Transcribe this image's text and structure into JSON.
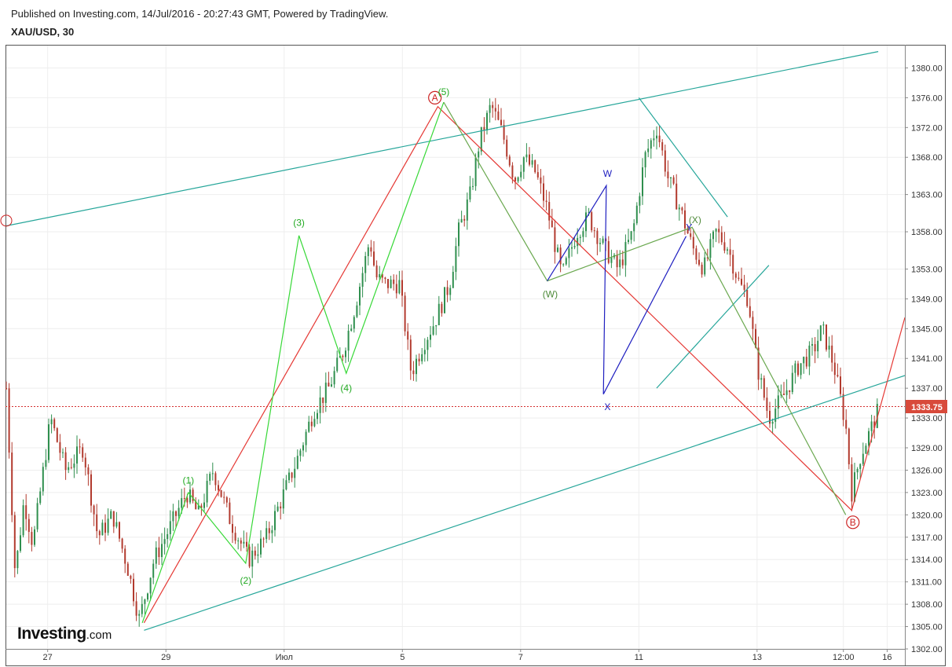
{
  "header": {
    "published": "Published on Investing.com, 14/Jul/2016 - 20:27:43 GMT, Powered by TradingView.",
    "symbol": "XAU/USD, 30"
  },
  "logo": {
    "brand": "Investing",
    "suffix": ".com"
  },
  "chart_data": {
    "type": "candlestick",
    "symbol": "XAU/USD",
    "interval": "30",
    "ylim": [
      1302,
      1383
    ],
    "y_ticks": [
      "1380.00",
      "1376.00",
      "1372.00",
      "1368.00",
      "1363.00",
      "1358.00",
      "1353.00",
      "1349.00",
      "1345.00",
      "1341.00",
      "1337.00",
      "1333.00",
      "1329.00",
      "1326.00",
      "1323.00",
      "1320.00",
      "1317.00",
      "1314.00",
      "1311.00",
      "1308.00",
      "1305.00",
      "1302.00"
    ],
    "y_tick_values": [
      1380,
      1376,
      1372,
      1368,
      1363,
      1358,
      1353,
      1349,
      1345,
      1341,
      1337,
      1333,
      1329,
      1326,
      1323,
      1320,
      1317,
      1314,
      1311,
      1308,
      1305,
      1302
    ],
    "x_ticks": [
      "27",
      "29",
      "Июл",
      "5",
      "7",
      "11",
      "13",
      "12:00",
      "16"
    ],
    "x_tick_values": [
      0,
      2,
      4,
      6,
      8,
      10,
      12,
      13.46,
      14.2
    ],
    "x_range": [
      -0.7,
      14.5
    ],
    "last_price": 1333.75,
    "last_price_label": "1333.75",
    "grid": true,
    "price_path": [
      [
        -0.7,
        1337
      ],
      [
        -0.55,
        1312
      ],
      [
        -0.4,
        1322
      ],
      [
        -0.25,
        1316
      ],
      [
        0.05,
        1333
      ],
      [
        0.3,
        1326
      ],
      [
        0.6,
        1329
      ],
      [
        0.85,
        1317
      ],
      [
        1.1,
        1320
      ],
      [
        1.35,
        1313
      ],
      [
        1.55,
        1306
      ],
      [
        1.8,
        1314
      ],
      [
        2.05,
        1318
      ],
      [
        2.35,
        1323
      ],
      [
        2.55,
        1320
      ],
      [
        2.8,
        1326
      ],
      [
        3.1,
        1319
      ],
      [
        3.4,
        1314
      ],
      [
        3.7,
        1317
      ],
      [
        3.95,
        1322
      ],
      [
        4.2,
        1327
      ],
      [
        4.5,
        1334
      ],
      [
        4.75,
        1337
      ],
      [
        5.0,
        1342
      ],
      [
        5.2,
        1348
      ],
      [
        5.45,
        1357
      ],
      [
        5.55,
        1352
      ],
      [
        5.7,
        1351
      ],
      [
        5.95,
        1351
      ],
      [
        6.15,
        1339
      ],
      [
        6.35,
        1343
      ],
      [
        6.55,
        1346
      ],
      [
        6.8,
        1351
      ],
      [
        6.95,
        1358
      ],
      [
        7.15,
        1363
      ],
      [
        7.3,
        1370
      ],
      [
        7.5,
        1375
      ],
      [
        7.7,
        1371
      ],
      [
        7.9,
        1365
      ],
      [
        8.05,
        1368
      ],
      [
        8.25,
        1366
      ],
      [
        8.45,
        1361
      ],
      [
        8.7,
        1352
      ],
      [
        8.95,
        1358
      ],
      [
        9.15,
        1360
      ],
      [
        9.4,
        1356
      ],
      [
        9.65,
        1353
      ],
      [
        9.9,
        1358
      ],
      [
        10.1,
        1368
      ],
      [
        10.3,
        1372
      ],
      [
        10.5,
        1365
      ],
      [
        10.7,
        1361
      ],
      [
        10.9,
        1356
      ],
      [
        11.1,
        1353
      ],
      [
        11.3,
        1358
      ],
      [
        11.5,
        1356
      ],
      [
        11.7,
        1351
      ],
      [
        11.85,
        1349
      ],
      [
        12.0,
        1340
      ],
      [
        12.2,
        1333
      ],
      [
        12.45,
        1336
      ],
      [
        12.7,
        1340
      ],
      [
        12.95,
        1342
      ],
      [
        13.1,
        1345
      ],
      [
        13.3,
        1340
      ],
      [
        13.5,
        1332
      ],
      [
        13.6,
        1323
      ],
      [
        13.75,
        1328
      ],
      [
        13.9,
        1331
      ],
      [
        14.05,
        1334
      ]
    ],
    "lines": [
      {
        "name": "channel-upper",
        "color": "#26a69a",
        "points": [
          [
            -0.7,
            1358.8
          ],
          [
            14.05,
            1382.2
          ]
        ]
      },
      {
        "name": "channel-lower",
        "color": "#26a69a",
        "points": [
          [
            1.63,
            1304.5
          ],
          [
            14.5,
            1338.7
          ]
        ]
      },
      {
        "name": "channel-extra",
        "color": "#26a69a",
        "points": [
          [
            10.0,
            1376
          ],
          [
            11.5,
            1360
          ]
        ]
      },
      {
        "name": "channel-small",
        "color": "#26a69a",
        "points": [
          [
            10.3,
            1337
          ],
          [
            12.2,
            1353.5
          ]
        ]
      },
      {
        "name": "abc-red",
        "color": "#e53935",
        "points": [
          [
            1.63,
            1305.5
          ],
          [
            6.6,
            1374.8
          ],
          [
            13.6,
            1320.6
          ],
          [
            14.5,
            1346.5
          ]
        ]
      },
      {
        "name": "impulse-green",
        "color": "#36d836",
        "points": [
          [
            1.6,
            1305.5
          ],
          [
            2.38,
            1323
          ],
          [
            3.35,
            1313.5
          ],
          [
            4.25,
            1357.5
          ],
          [
            5.05,
            1339
          ],
          [
            6.7,
            1375.4
          ]
        ]
      },
      {
        "name": "wxy-olive",
        "color": "#6aa84f",
        "points": [
          [
            6.7,
            1375.4
          ],
          [
            8.45,
            1351.4
          ],
          [
            10.9,
            1358.6
          ],
          [
            13.5,
            1320
          ]
        ]
      },
      {
        "name": "wxy-blue",
        "color": "#1f1fc0",
        "points": [
          [
            8.45,
            1351.4
          ],
          [
            9.45,
            1364.2
          ],
          [
            9.4,
            1336.2
          ],
          [
            10.8,
            1357.4
          ]
        ]
      }
    ],
    "annotations": [
      {
        "text": "A",
        "type": "circle",
        "color": "#cc2222",
        "x": 6.55,
        "y": 1376
      },
      {
        "text": "B",
        "type": "circle",
        "color": "#cc2222",
        "x": 13.62,
        "y": 1319
      },
      {
        "text": "(1)",
        "color": "#22aa22",
        "x": 2.38,
        "y": 1324.6
      },
      {
        "text": "(2)",
        "color": "#22aa22",
        "x": 3.35,
        "y": 1311.2
      },
      {
        "text": "(3)",
        "color": "#22aa22",
        "x": 4.25,
        "y": 1359.2
      },
      {
        "text": "(4)",
        "color": "#22aa22",
        "x": 5.05,
        "y": 1337
      },
      {
        "text": "(5)",
        "color": "#22aa22",
        "x": 6.7,
        "y": 1376.8
      },
      {
        "text": "(W)",
        "color": "#4e8a3a",
        "x": 8.5,
        "y": 1349.6
      },
      {
        "text": "(X)",
        "color": "#4e8a3a",
        "x": 10.95,
        "y": 1359.6
      },
      {
        "text": "W",
        "color": "#1f1fc0",
        "x": 9.47,
        "y": 1365.8
      },
      {
        "text": "X",
        "color": "#1f1fc0",
        "x": 9.47,
        "y": 1334.5
      },
      {
        "text": "Y",
        "color": "#1f1fc0",
        "x": 10.85,
        "y": 1358.6
      }
    ]
  }
}
